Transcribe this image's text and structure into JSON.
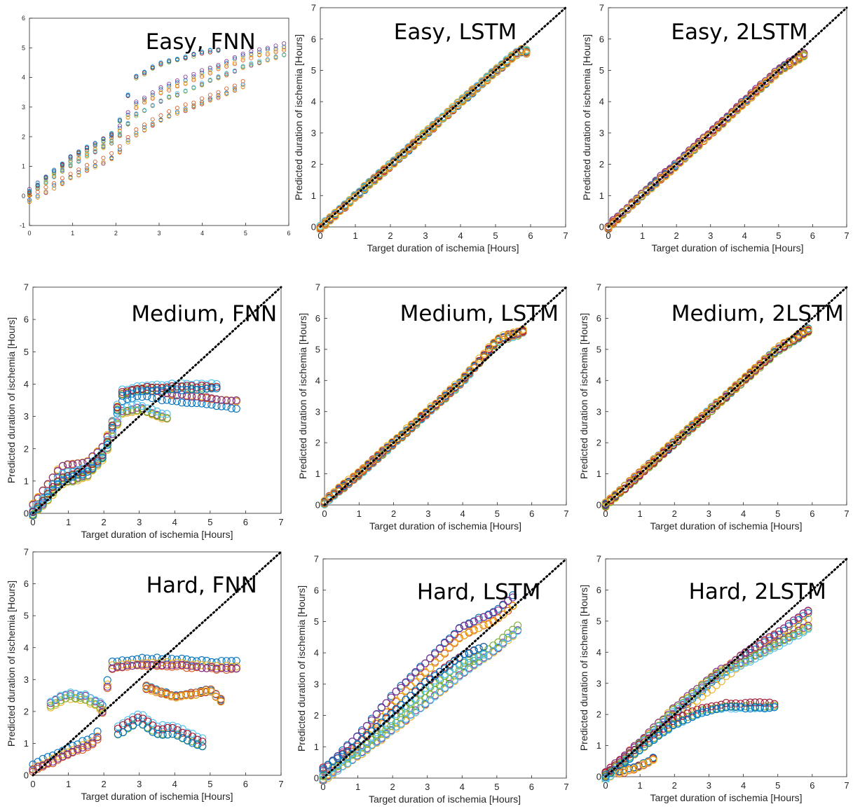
{
  "colors": [
    "#0072BD",
    "#D95319",
    "#EDB120",
    "#7E2F8E",
    "#77AC30",
    "#4DBEEE",
    "#A2142F"
  ],
  "diagonal_color": "#000000",
  "chart_data": [
    {
      "type": "scatter",
      "title": "Easy, FNN",
      "xlabel": "",
      "ylabel": "",
      "xlim": [
        0,
        6
      ],
      "ylim": [
        -1,
        6
      ],
      "xticks": [
        "0",
        "1",
        "2",
        "3",
        "4",
        "5",
        "6"
      ],
      "yticks": [
        "-1",
        "0",
        "1",
        "2",
        "3",
        "4",
        "5",
        "6"
      ],
      "diagonal": false,
      "x_end": 5.9,
      "series": [
        {
          "values_sample": [
            [
              0,
              0.1
            ],
            [
              1,
              1.2
            ],
            [
              2,
              2.0
            ],
            [
              2.4,
              3.0
            ],
            [
              3,
              3.5
            ],
            [
              4,
              4.1
            ],
            [
              5,
              4.7
            ],
            [
              5.9,
              5.0
            ]
          ]
        },
        {
          "values_sample": [
            [
              0,
              0.0
            ],
            [
              1,
              1.0
            ],
            [
              2,
              1.8
            ],
            [
              2.4,
              2.6
            ],
            [
              3,
              3.1
            ],
            [
              4,
              3.7
            ],
            [
              5,
              4.3
            ],
            [
              5.9,
              4.7
            ]
          ]
        },
        {
          "values_sample": [
            [
              0,
              0.2
            ],
            [
              1,
              1.4
            ],
            [
              2,
              2.2
            ],
            [
              2.4,
              4.0
            ],
            [
              3,
              4.5
            ],
            [
              4,
              4.9
            ],
            [
              4.5,
              5.0
            ]
          ]
        },
        {
          "values_sample": [
            [
              0,
              -0.1
            ],
            [
              1,
              0.7
            ],
            [
              2,
              1.4
            ],
            [
              2.4,
              2.1
            ],
            [
              3,
              2.6
            ],
            [
              4,
              3.2
            ],
            [
              5,
              3.8
            ]
          ]
        }
      ]
    },
    {
      "type": "scatter",
      "title": "Easy, LSTM",
      "xlabel": "Target duration of ischemia [Hours]",
      "ylabel": "Predicted duration of ischemia [Hours]",
      "xlim": [
        0,
        7
      ],
      "ylim": [
        0,
        7
      ],
      "xticks": [
        "0",
        "1",
        "2",
        "3",
        "4",
        "5",
        "6",
        "7"
      ],
      "yticks": [
        "0",
        "1",
        "2",
        "3",
        "4",
        "5",
        "6",
        "7"
      ],
      "diagonal": true,
      "series": [
        {
          "values_sample": [
            [
              0,
              0
            ],
            [
              1,
              1
            ],
            [
              2,
              2
            ],
            [
              3,
              3
            ],
            [
              4,
              4
            ],
            [
              5,
              5
            ],
            [
              5.7,
              5.65
            ],
            [
              6,
              5.6
            ]
          ]
        }
      ]
    },
    {
      "type": "scatter",
      "title": "Easy, 2LSTM",
      "xlabel": "Target duration of ischemia [Hours]",
      "ylabel": "Predicted duration of ischemia [Hours]",
      "xlim": [
        0,
        7
      ],
      "ylim": [
        0,
        7
      ],
      "xticks": [
        "0",
        "1",
        "2",
        "3",
        "4",
        "5",
        "6",
        "7"
      ],
      "yticks": [
        "0",
        "1",
        "2",
        "3",
        "4",
        "5",
        "6",
        "7"
      ],
      "diagonal": true,
      "series": [
        {
          "values_sample": [
            [
              0,
              0
            ],
            [
              1,
              1.05
            ],
            [
              2,
              2
            ],
            [
              3,
              3
            ],
            [
              4,
              4
            ],
            [
              5,
              5
            ],
            [
              5.8,
              5.55
            ]
          ]
        }
      ]
    },
    {
      "type": "scatter",
      "title": "Medium, FNN",
      "xlabel": "Target duration of ischemia [Hours]",
      "ylabel": "Predicted duration of ischemia [Hours]",
      "xlim": [
        0,
        7
      ],
      "ylim": [
        0,
        7
      ],
      "xticks": [
        "0",
        "1",
        "2",
        "3",
        "4",
        "5",
        "6",
        "7"
      ],
      "yticks": [
        "0",
        "1",
        "2",
        "3",
        "4",
        "5",
        "6",
        "7"
      ],
      "diagonal": true,
      "series": [
        {
          "values_sample": [
            [
              0,
              0.2
            ],
            [
              0.8,
              1.4
            ],
            [
              1.5,
              1.5
            ],
            [
              2.0,
              2.0
            ],
            [
              2.5,
              3.6
            ],
            [
              3,
              3.8
            ],
            [
              4,
              3.6
            ],
            [
              5,
              3.5
            ],
            [
              5.8,
              3.4
            ]
          ]
        },
        {
          "values_sample": [
            [
              0,
              0
            ],
            [
              0.8,
              1.0
            ],
            [
              1.5,
              1.2
            ],
            [
              2.0,
              1.8
            ],
            [
              2.5,
              3.2
            ],
            [
              3,
              3.3
            ],
            [
              3.8,
              3.0
            ]
          ]
        },
        {
          "values_sample": [
            [
              0,
              0.1
            ],
            [
              0.8,
              1.2
            ],
            [
              1.5,
              1.4
            ],
            [
              2.0,
              1.9
            ],
            [
              2.5,
              3.8
            ],
            [
              3,
              3.95
            ],
            [
              4,
              4.0
            ],
            [
              5.3,
              4.0
            ]
          ]
        }
      ]
    },
    {
      "type": "scatter",
      "title": "Medium, LSTM",
      "xlabel": "Target duration of ischemia [Hours]",
      "ylabel": "Predicted duration of ischemia [Hours]",
      "xlim": [
        0,
        7
      ],
      "ylim": [
        0,
        7
      ],
      "xticks": [
        "0",
        "1",
        "2",
        "3",
        "4",
        "5",
        "6",
        "7"
      ],
      "yticks": [
        "0",
        "1",
        "2",
        "3",
        "4",
        "5",
        "6",
        "7"
      ],
      "diagonal": true,
      "series": [
        {
          "values_sample": [
            [
              0,
              0.1
            ],
            [
              1,
              1
            ],
            [
              2,
              2
            ],
            [
              3,
              3
            ],
            [
              4,
              4
            ],
            [
              5,
              5.3
            ],
            [
              5.8,
              5.6
            ]
          ]
        }
      ]
    },
    {
      "type": "scatter",
      "title": "Medium, 2LSTM",
      "xlabel": "Target duration of ischemia [Hours]",
      "ylabel": "Predicted duration of ischemia [Hours]",
      "xlim": [
        0,
        7
      ],
      "ylim": [
        0,
        7
      ],
      "xticks": [
        "0",
        "1",
        "2",
        "3",
        "4",
        "5",
        "6",
        "7"
      ],
      "yticks": [
        "0",
        "1",
        "2",
        "3",
        "4",
        "5",
        "6",
        "7"
      ],
      "diagonal": true,
      "series": [
        {
          "values_sample": [
            [
              0,
              0
            ],
            [
              1,
              1
            ],
            [
              2,
              2
            ],
            [
              3,
              3
            ],
            [
              4,
              4
            ],
            [
              5,
              5
            ],
            [
              6,
              5.7
            ]
          ]
        }
      ]
    },
    {
      "type": "scatter",
      "title": "Hard, FNN",
      "xlabel": "Target duration of ischemia [Hours]",
      "ylabel": "Predicted duration of ischemia [Hours]",
      "xlim": [
        0,
        7
      ],
      "ylim": [
        0,
        7
      ],
      "xticks": [
        "0",
        "1",
        "2",
        "3",
        "4",
        "5",
        "6",
        "7"
      ],
      "yticks": [
        "0",
        "1",
        "2",
        "3",
        "4",
        "5",
        "6",
        "7"
      ],
      "diagonal": true,
      "series": [
        {
          "values_sample": [
            [
              0,
              0.3
            ],
            [
              1,
              0.8
            ],
            [
              1.8,
              1.2
            ],
            [
              2.2,
              3.5
            ],
            [
              3,
              3.6
            ],
            [
              4,
              3.6
            ],
            [
              5,
              3.5
            ],
            [
              5.8,
              3.5
            ]
          ]
        },
        {
          "values_sample": [
            [
              0.5,
              2.3
            ],
            [
              1,
              2.6
            ],
            [
              1.5,
              2.5
            ],
            [
              2,
              2.2
            ]
          ]
        },
        {
          "values_sample": [
            [
              2.4,
              1.4
            ],
            [
              3,
              1.8
            ],
            [
              3.5,
              1.4
            ],
            [
              4,
              1.4
            ],
            [
              4.8,
              1.0
            ]
          ]
        },
        {
          "values_sample": [
            [
              3.2,
              2.7
            ],
            [
              4,
              2.4
            ],
            [
              5,
              2.6
            ],
            [
              5.4,
              2.2
            ]
          ]
        }
      ]
    },
    {
      "type": "scatter",
      "title": "Hard, LSTM",
      "xlabel": "Target duration of ischemia [Hours]",
      "ylabel": "Predicted duration of ischemia [Hours]",
      "xlim": [
        0,
        7
      ],
      "ylim": [
        0,
        7
      ],
      "xticks": [
        "0",
        "1",
        "2",
        "3",
        "4",
        "5",
        "6",
        "7"
      ],
      "yticks": [
        "0",
        "1",
        "2",
        "3",
        "4",
        "5",
        "6",
        "7"
      ],
      "diagonal": true,
      "series": [
        {
          "values_sample": [
            [
              0,
              0.1
            ],
            [
              1,
              1.2
            ],
            [
              2,
              2.5
            ],
            [
              3,
              3.6
            ],
            [
              4,
              4.7
            ],
            [
              5,
              5.2
            ],
            [
              5.5,
              5.7
            ]
          ]
        },
        {
          "values_sample": [
            [
              0,
              0
            ],
            [
              1,
              0.8
            ],
            [
              2,
              1.6
            ],
            [
              3,
              2.5
            ],
            [
              4,
              3.4
            ],
            [
              5,
              4.2
            ],
            [
              5.6,
              4.8
            ]
          ]
        },
        {
          "values_sample": [
            [
              0,
              0.2
            ],
            [
              1,
              1.0
            ],
            [
              2,
              2.0
            ],
            [
              3,
              3.0
            ],
            [
              4,
              3.8
            ],
            [
              4.7,
              4.1
            ]
          ]
        }
      ]
    },
    {
      "type": "scatter",
      "title": "Hard, 2LSTM",
      "xlabel": "Target duration of ischemia [Hours]",
      "ylabel": "Predicted duration of ischemia [Hours]",
      "xlim": [
        0,
        7
      ],
      "ylim": [
        0,
        7
      ],
      "xticks": [
        "0",
        "1",
        "2",
        "3",
        "4",
        "5",
        "6",
        "7"
      ],
      "yticks": [
        "0",
        "1",
        "2",
        "3",
        "4",
        "5",
        "6",
        "7"
      ],
      "diagonal": true,
      "series": [
        {
          "values_sample": [
            [
              0,
              0
            ],
            [
              1,
              1
            ],
            [
              2,
              1.9
            ],
            [
              3,
              2.9
            ],
            [
              4,
              3.8
            ],
            [
              5,
              4.5
            ],
            [
              6,
              5.3
            ]
          ]
        },
        {
          "values_sample": [
            [
              0,
              0
            ],
            [
              1,
              1.1
            ],
            [
              2,
              2.2
            ],
            [
              3.3,
              3.4
            ],
            [
              4,
              3.7
            ],
            [
              5,
              4.3
            ],
            [
              6,
              4.9
            ]
          ]
        },
        {
          "values_sample": [
            [
              0,
              0
            ],
            [
              1,
              0.9
            ],
            [
              2,
              1.7
            ],
            [
              2.8,
              2.1
            ],
            [
              3.5,
              2.25
            ],
            [
              5,
              2.25
            ]
          ]
        },
        {
          "values_sample": [
            [
              0.4,
              0.2
            ],
            [
              1,
              0.4
            ],
            [
              1.5,
              0.7
            ]
          ]
        }
      ]
    }
  ]
}
